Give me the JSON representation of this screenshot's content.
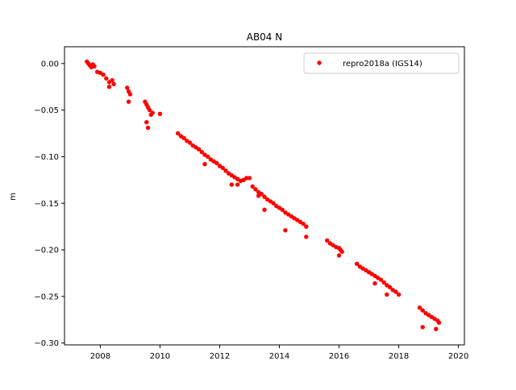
{
  "chart_data": {
    "type": "scatter",
    "title": "AB04 N",
    "xlabel": "",
    "ylabel": "m",
    "xlim": [
      2006.8,
      2020.2
    ],
    "ylim": [
      -0.302,
      0.018
    ],
    "xticks": [
      2008,
      2010,
      2012,
      2014,
      2016,
      2018,
      2020
    ],
    "xtick_labels": [
      "2008",
      "2010",
      "2012",
      "2014",
      "2016",
      "2018",
      "2020"
    ],
    "yticks": [
      0.0,
      -0.05,
      -0.1,
      -0.15,
      -0.2,
      -0.25,
      -0.3
    ],
    "ytick_labels": [
      "0.00",
      "−0.05",
      "−0.10",
      "−0.15",
      "−0.20",
      "−0.25",
      "−0.30"
    ],
    "grid": false,
    "legend_position": "top-right",
    "series": [
      {
        "name": "repro2018a (IGS14)",
        "color": "#ff0000",
        "marker": "circle",
        "x": [
          2007.55,
          2007.6,
          2007.65,
          2007.7,
          2007.75,
          2007.8,
          2007.9,
          2008.0,
          2008.1,
          2008.2,
          2008.3,
          2008.4,
          2008.45,
          2008.3,
          2008.9,
          2008.95,
          2009.0,
          2008.95,
          2009.5,
          2009.55,
          2009.6,
          2009.65,
          2009.7,
          2009.75,
          2009.55,
          2009.6,
          2010.0,
          2010.6,
          2010.7,
          2010.8,
          2010.9,
          2011.0,
          2011.1,
          2011.2,
          2011.3,
          2011.4,
          2011.5,
          2011.6,
          2011.7,
          2011.8,
          2011.9,
          2012.0,
          2012.1,
          2012.2,
          2012.3,
          2012.4,
          2012.5,
          2012.6,
          2012.7,
          2012.8,
          2012.9,
          2013.0,
          2013.1,
          2013.2,
          2013.3,
          2013.4,
          2013.5,
          2013.6,
          2013.7,
          2013.8,
          2013.9,
          2014.0,
          2014.1,
          2014.2,
          2014.3,
          2014.4,
          2014.5,
          2014.6,
          2014.7,
          2014.8,
          2014.9,
          2011.5,
          2012.4,
          2012.6,
          2013.3,
          2013.5,
          2014.2,
          2014.9,
          2015.6,
          2015.7,
          2015.8,
          2015.9,
          2016.0,
          2016.05,
          2016.1,
          2016.0,
          2016.6,
          2016.7,
          2016.8,
          2016.9,
          2017.0,
          2017.1,
          2017.2,
          2017.3,
          2017.4,
          2017.5,
          2017.6,
          2017.7,
          2017.8,
          2017.9,
          2018.0,
          2017.2,
          2017.6,
          2018.7,
          2018.8,
          2018.9,
          2019.0,
          2019.1,
          2019.2,
          2019.3,
          2019.35,
          2018.8,
          2019.25
        ],
        "y": [
          0.002,
          0.0,
          -0.002,
          -0.004,
          -0.001,
          -0.003,
          -0.009,
          -0.01,
          -0.012,
          -0.016,
          -0.02,
          -0.018,
          -0.022,
          -0.025,
          -0.026,
          -0.03,
          -0.033,
          -0.041,
          -0.041,
          -0.044,
          -0.047,
          -0.05,
          -0.055,
          -0.053,
          -0.063,
          -0.069,
          -0.054,
          -0.075,
          -0.078,
          -0.08,
          -0.083,
          -0.085,
          -0.088,
          -0.09,
          -0.092,
          -0.095,
          -0.098,
          -0.1,
          -0.103,
          -0.105,
          -0.107,
          -0.11,
          -0.112,
          -0.115,
          -0.118,
          -0.12,
          -0.122,
          -0.124,
          -0.126,
          -0.125,
          -0.123,
          -0.123,
          -0.132,
          -0.135,
          -0.138,
          -0.14,
          -0.143,
          -0.146,
          -0.148,
          -0.15,
          -0.153,
          -0.155,
          -0.157,
          -0.16,
          -0.162,
          -0.164,
          -0.166,
          -0.168,
          -0.17,
          -0.172,
          -0.175,
          -0.108,
          -0.13,
          -0.13,
          -0.142,
          -0.157,
          -0.179,
          -0.186,
          -0.19,
          -0.193,
          -0.195,
          -0.197,
          -0.198,
          -0.2,
          -0.202,
          -0.206,
          -0.215,
          -0.218,
          -0.22,
          -0.222,
          -0.224,
          -0.226,
          -0.228,
          -0.23,
          -0.232,
          -0.235,
          -0.238,
          -0.24,
          -0.243,
          -0.245,
          -0.248,
          -0.236,
          -0.248,
          -0.262,
          -0.265,
          -0.268,
          -0.27,
          -0.272,
          -0.274,
          -0.276,
          -0.278,
          -0.283,
          -0.285
        ]
      }
    ]
  }
}
